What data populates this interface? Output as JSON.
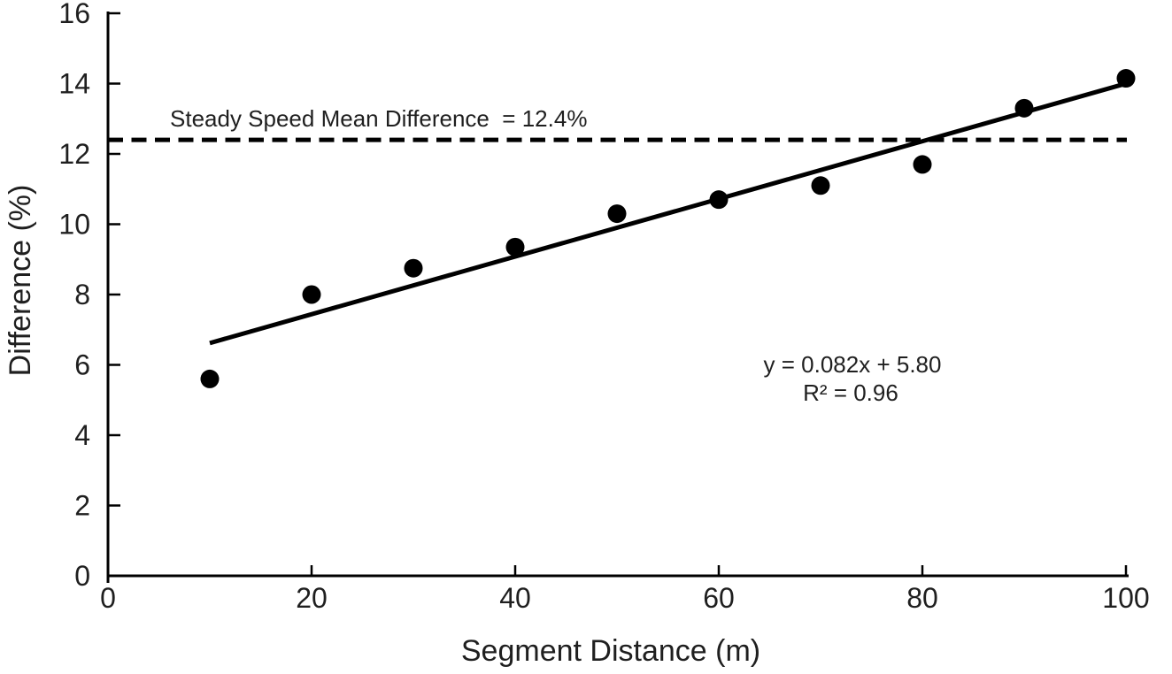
{
  "chart_data": {
    "type": "scatter",
    "title": "",
    "xlabel": "Segment Distance (m)",
    "ylabel": "Difference (%)",
    "xlim": [
      0,
      100
    ],
    "ylim": [
      0,
      16
    ],
    "xticks": [
      0,
      20,
      40,
      60,
      80,
      100
    ],
    "yticks": [
      0,
      2,
      4,
      6,
      8,
      10,
      12,
      14,
      16
    ],
    "grid": false,
    "legend_position": "none",
    "points": {
      "x": [
        10,
        20,
        30,
        40,
        50,
        60,
        70,
        80,
        90,
        100
      ],
      "y": [
        5.6,
        8.0,
        8.75,
        9.35,
        10.3,
        10.7,
        11.1,
        11.7,
        13.3,
        14.15
      ]
    },
    "marker": {
      "shape": "circle",
      "color": "#000000"
    },
    "trendline": {
      "slope": 0.082,
      "intercept": 5.8,
      "color": "#000000",
      "equation_label": "y = 0.082x + 5.80",
      "r_squared_label": "R² = 0.96"
    },
    "reference_line": {
      "value": 12.4,
      "style": "dashed",
      "color": "#000000",
      "label": "Steady Speed Mean Difference  = 12.4%"
    },
    "axis_color": "#000000",
    "text_color": "#1f1f1f"
  }
}
